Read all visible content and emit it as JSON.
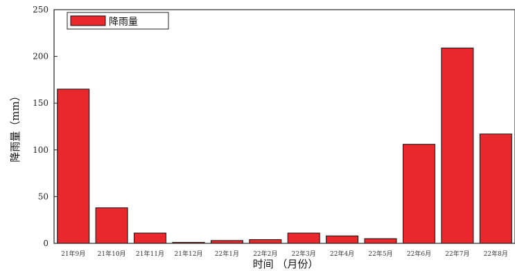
{
  "chart_data": {
    "type": "bar",
    "categories": [
      "21年9月",
      "21年10月",
      "21年11月",
      "21年12月",
      "22年1月",
      "22年2月",
      "22年3月",
      "22年4月",
      "22年5月",
      "22年6月",
      "22年7月",
      "22年8月"
    ],
    "series": [
      {
        "name": "降雨量",
        "values": [
          165,
          38,
          11,
          1,
          3,
          4,
          11,
          8,
          5,
          106,
          209,
          117
        ]
      }
    ],
    "xlabel": "时间 （月份）",
    "ylabel": "降雨量（mm）",
    "ylim": [
      0,
      250
    ],
    "yticks": [
      0,
      50,
      100,
      150,
      200,
      250
    ],
    "bar_color": "#e8282c",
    "grid": false,
    "legend_position": "top-left"
  }
}
